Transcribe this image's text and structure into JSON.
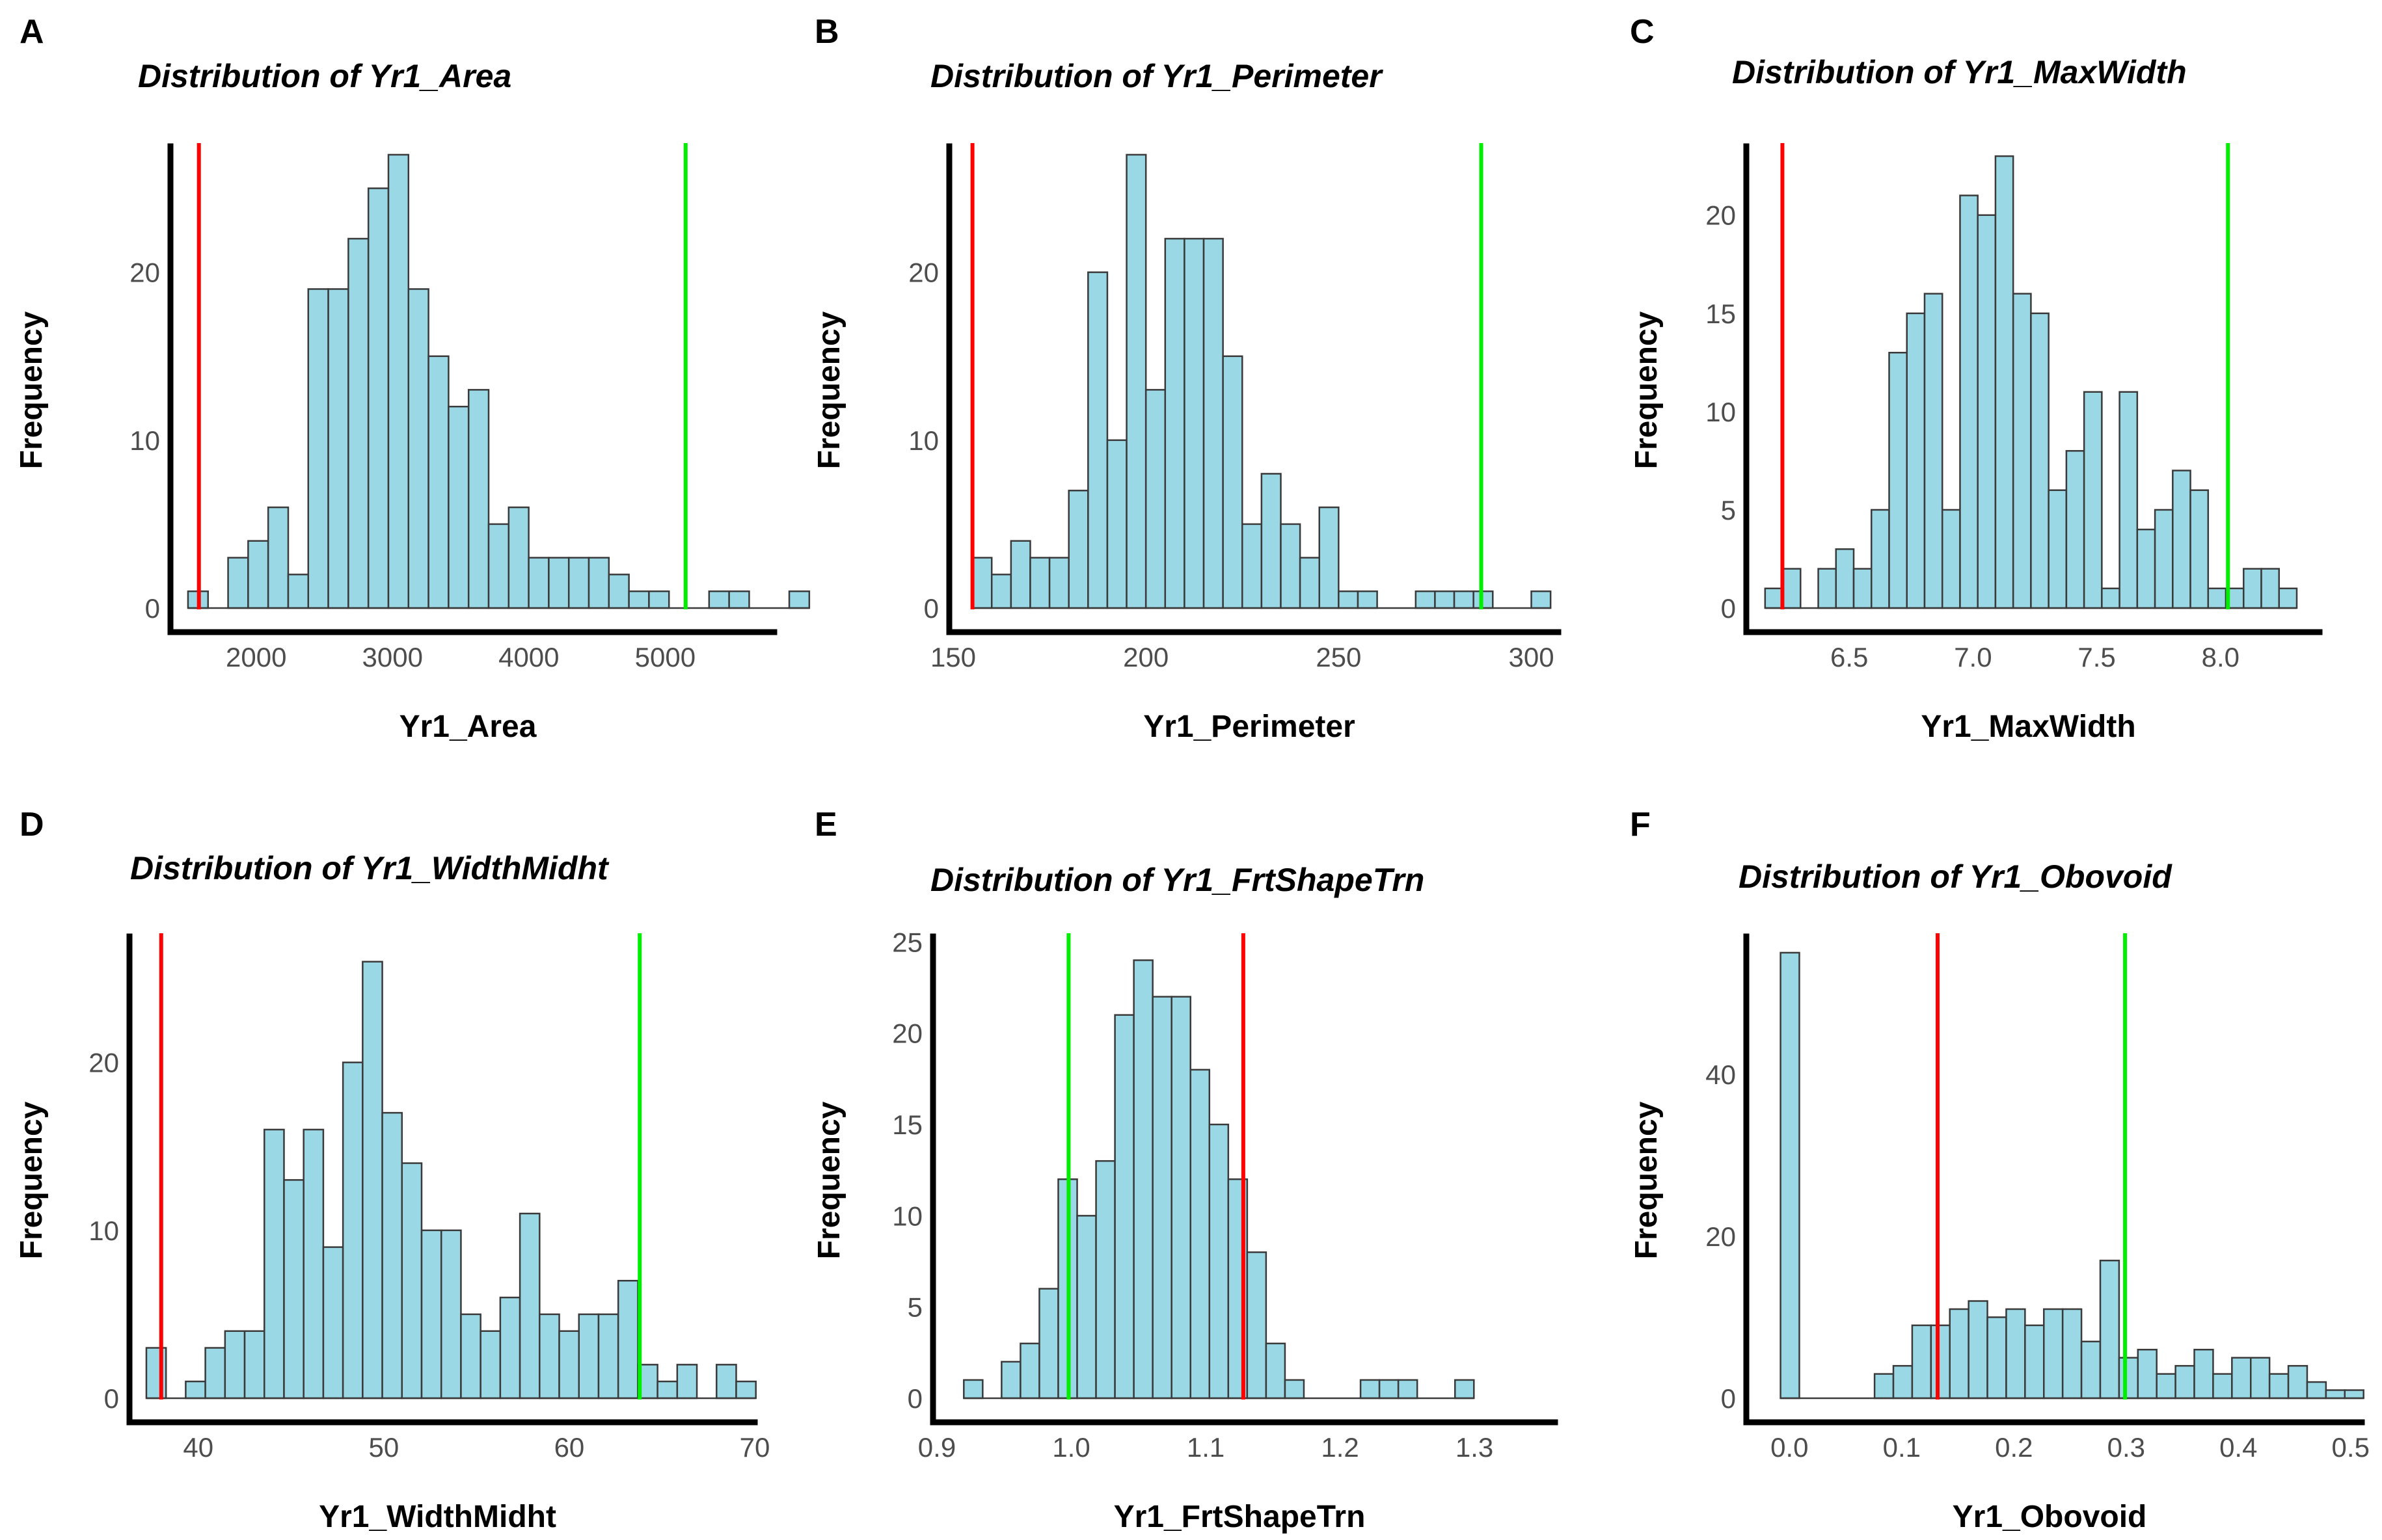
{
  "chart_data": [
    {
      "type": "histogram",
      "panel": "A",
      "title": "Distribution of Yr1_Area",
      "xlabel": "Yr1_Area",
      "ylabel": "Frequency",
      "xlim": [
        1400,
        5800
      ],
      "ylim": [
        0,
        27.5
      ],
      "xticks": [
        2000,
        3000,
        4000,
        5000
      ],
      "yticks": [
        0,
        10,
        20
      ],
      "bin_start": 1500,
      "bin_width": 147,
      "counts": [
        1,
        0,
        3,
        4,
        6,
        2,
        19,
        19,
        22,
        25,
        27,
        19,
        15,
        12,
        13,
        5,
        6,
        3,
        3,
        3,
        3,
        2,
        1,
        1,
        0,
        0,
        1,
        1,
        0,
        0,
        1
      ],
      "vlines": [
        {
          "x": 1580,
          "color": "#ff0000"
        },
        {
          "x": 5150,
          "color": "#00ee00"
        }
      ]
    },
    {
      "type": "histogram",
      "panel": "B",
      "title": "Distribution of Yr1_Perimeter",
      "xlabel": "Yr1_Perimeter",
      "ylabel": "Frequency",
      "xlim": [
        150,
        307
      ],
      "ylim": [
        0,
        27.5
      ],
      "xticks": [
        150,
        200,
        250,
        300
      ],
      "yticks": [
        0,
        10,
        20
      ],
      "bin_start": 155,
      "bin_width": 5,
      "counts": [
        3,
        2,
        4,
        3,
        3,
        7,
        20,
        10,
        27,
        13,
        22,
        22,
        22,
        15,
        5,
        8,
        5,
        3,
        6,
        1,
        1,
        0,
        0,
        1,
        1,
        1,
        1,
        0,
        0,
        1
      ],
      "vlines": [
        {
          "x": 155,
          "color": "#ff0000"
        },
        {
          "x": 287,
          "color": "#00ee00"
        }
      ]
    },
    {
      "type": "histogram",
      "panel": "C",
      "title": "Distribution of Yr1_MaxWidth",
      "xlabel": "Yr1_MaxWidth",
      "ylabel": "Frequency",
      "xlim": [
        6.1,
        8.4
      ],
      "ylim": [
        0,
        23.5
      ],
      "xticks": [
        6.5,
        7.0,
        7.5,
        8.0
      ],
      "yticks": [
        0,
        5,
        10,
        15,
        20
      ],
      "bin_start": 6.16,
      "bin_width": 0.0716,
      "counts": [
        1,
        2,
        0,
        2,
        3,
        2,
        5,
        13,
        15,
        16,
        5,
        21,
        20,
        23,
        16,
        15,
        6,
        8,
        11,
        1,
        11,
        4,
        5,
        7,
        6,
        1,
        1,
        2,
        2,
        1
      ],
      "vlines": [
        {
          "x": 6.23,
          "color": "#ff0000"
        },
        {
          "x": 8.03,
          "color": "#00ee00"
        }
      ]
    },
    {
      "type": "histogram",
      "panel": "D",
      "title": "Distribution of Yr1_WidthMidht",
      "xlabel": "Yr1_WidthMidht",
      "ylabel": "Frequency",
      "xlim": [
        36.5,
        70
      ],
      "ylim": [
        0,
        27.5
      ],
      "xticks": [
        40,
        50,
        60,
        70
      ],
      "yticks": [
        0,
        10,
        20
      ],
      "bin_start": 37.2,
      "bin_width": 1.06,
      "counts": [
        3,
        0,
        1,
        3,
        4,
        4,
        16,
        13,
        16,
        9,
        20,
        26,
        17,
        14,
        10,
        10,
        5,
        4,
        6,
        11,
        5,
        4,
        5,
        5,
        7,
        2,
        1,
        2,
        0,
        2,
        1
      ],
      "vlines": [
        {
          "x": 38,
          "color": "#ff0000"
        },
        {
          "x": 63.8,
          "color": "#00ee00"
        }
      ]
    },
    {
      "type": "histogram",
      "panel": "E",
      "title": "Distribution of Yr1_FrtShapeTrn",
      "xlabel": "Yr1_FrtShapeTrn",
      "ylabel": "Frequency",
      "xlim": [
        0.9,
        1.36
      ],
      "ylim": [
        0,
        25.3
      ],
      "xticks": [
        0.9,
        1.0,
        1.1,
        1.2,
        1.3
      ],
      "yticks": [
        0,
        5,
        10,
        15,
        20,
        25
      ],
      "bin_start": 0.92,
      "bin_width": 0.01406,
      "counts": [
        1,
        0,
        2,
        3,
        6,
        12,
        10,
        13,
        21,
        24,
        22,
        22,
        18,
        15,
        12,
        8,
        3,
        1,
        0,
        0,
        0,
        1,
        1,
        1,
        0,
        0,
        1
      ],
      "vlines": [
        {
          "x": 0.998,
          "color": "#00ee00"
        },
        {
          "x": 1.128,
          "color": "#ff0000"
        }
      ]
    },
    {
      "type": "histogram",
      "panel": "F",
      "title": "Distribution of Yr1_Obovoid",
      "xlabel": "Yr1_Obovoid",
      "ylabel": "Frequency",
      "xlim": [
        -0.035,
        0.51
      ],
      "ylim": [
        0,
        57
      ],
      "xticks": [
        0.0,
        0.1,
        0.2,
        0.3,
        0.4,
        0.5
      ],
      "yticks": [
        0,
        20,
        40
      ],
      "bin_start": -0.008,
      "bin_width": 0.01676,
      "counts": [
        55,
        0,
        0,
        0,
        0,
        3,
        4,
        9,
        9,
        11,
        12,
        10,
        11,
        9,
        11,
        11,
        7,
        17,
        5,
        6,
        3,
        4,
        6,
        3,
        5,
        5,
        3,
        4,
        2,
        1,
        1
      ],
      "vlines": [
        {
          "x": 0.132,
          "color": "#ff0000"
        },
        {
          "x": 0.299,
          "color": "#00ee00"
        }
      ]
    }
  ]
}
